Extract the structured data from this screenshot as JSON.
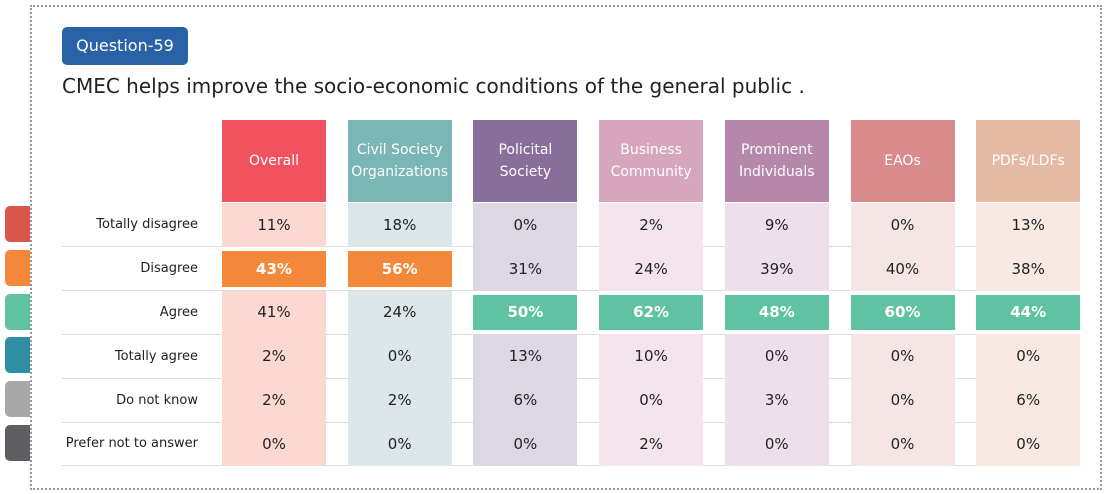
{
  "badge": "Question-59",
  "title": "CMEC helps improve the socio-economic conditions of the general public .",
  "table": {
    "columns": [
      {
        "label": "Overall",
        "header_color": "#f0525f",
        "cell_color": "#fbd9d0"
      },
      {
        "label": "Civil Society Organizations",
        "header_color": "#7bb6b6",
        "cell_color": "#dde6e8"
      },
      {
        "label": "Policital Society",
        "header_color": "#8a6e9a",
        "cell_color": "#ddd6e3"
      },
      {
        "label": "Business Community",
        "header_color": "#d6a6bc",
        "cell_color": "#f3e5eb"
      },
      {
        "label": "Prominent Individuals",
        "header_color": "#b487ab",
        "cell_color": "#ede0ea"
      },
      {
        "label": "EAOs",
        "header_color": "#d98a8a",
        "cell_color": "#f5e5e5"
      },
      {
        "label": "PDFs/LDFs",
        "header_color": "#e4baa5",
        "cell_color": "#f8eae3"
      }
    ],
    "rows": [
      {
        "label": "Totally disagree",
        "color": "#d9564a",
        "cells": [
          "11%",
          "18%",
          "0%",
          "2%",
          "9%",
          "0%",
          "13%"
        ],
        "highlight": [
          false,
          false,
          false,
          false,
          false,
          false,
          false
        ]
      },
      {
        "label": "Disagree",
        "color": "#f4883a",
        "cells": [
          "43%",
          "56%",
          "31%",
          "24%",
          "39%",
          "40%",
          "38%"
        ],
        "highlight": [
          true,
          true,
          false,
          false,
          false,
          false,
          false
        ]
      },
      {
        "label": "Agree",
        "color": "#5fc2a2",
        "cells": [
          "41%",
          "24%",
          "50%",
          "62%",
          "48%",
          "60%",
          "44%"
        ],
        "highlight": [
          false,
          false,
          true,
          true,
          true,
          true,
          true
        ]
      },
      {
        "label": "Totally agree",
        "color": "#2e8fa3",
        "cells": [
          "2%",
          "0%",
          "13%",
          "10%",
          "0%",
          "0%",
          "0%"
        ],
        "highlight": [
          false,
          false,
          false,
          false,
          false,
          false,
          false
        ]
      },
      {
        "label": "Do not know",
        "color": "#a9a9ab",
        "cells": [
          "2%",
          "2%",
          "6%",
          "0%",
          "3%",
          "0%",
          "6%"
        ],
        "highlight": [
          false,
          false,
          false,
          false,
          false,
          false,
          false
        ]
      },
      {
        "label": "Prefer not to answer",
        "color": "#5e5f63",
        "cells": [
          "0%",
          "0%",
          "0%",
          "2%",
          "0%",
          "0%",
          "0%"
        ],
        "highlight": [
          false,
          false,
          false,
          false,
          false,
          false,
          false
        ]
      }
    ]
  }
}
